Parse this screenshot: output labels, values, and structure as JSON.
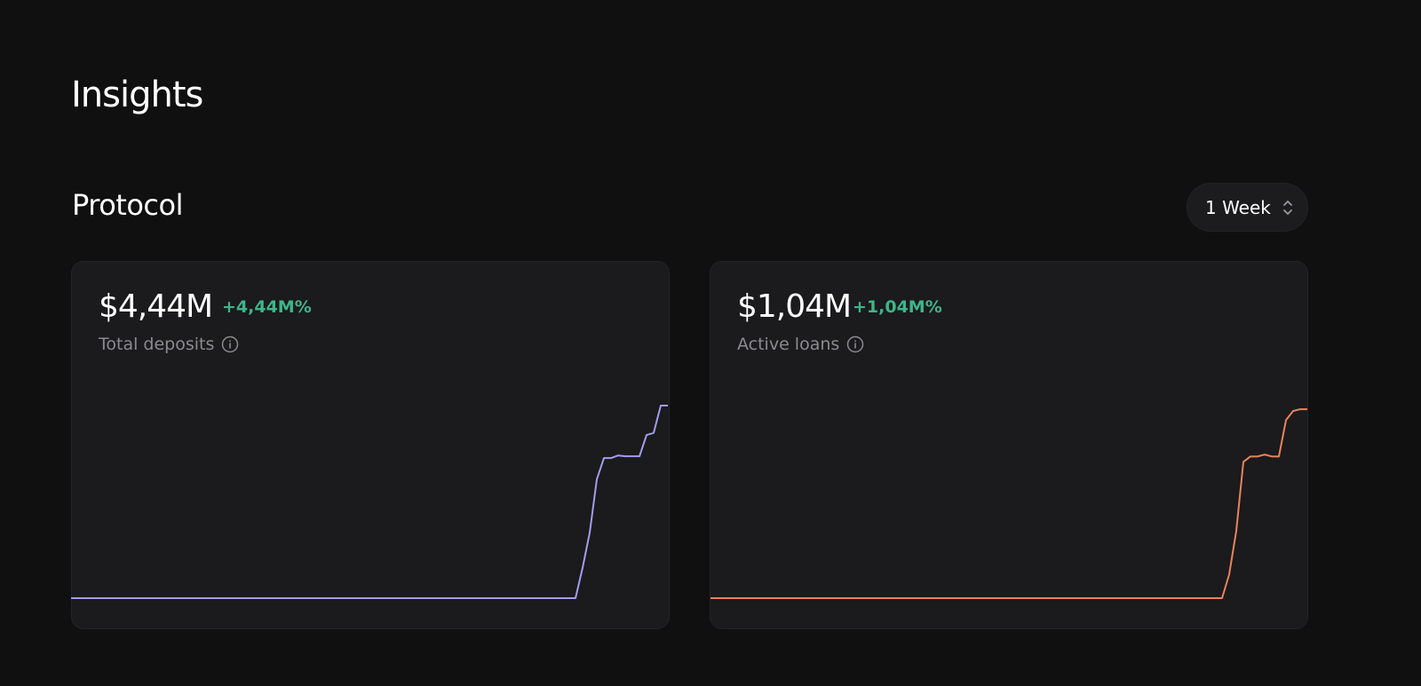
{
  "header": {
    "title": "Insights"
  },
  "section": {
    "title": "Protocol",
    "period": "1 Week"
  },
  "cards": [
    {
      "value": "$4,44M",
      "change": "+4,44M%",
      "label": "Total deposits"
    },
    {
      "value": "$1,04M",
      "change": "+1,04M%",
      "label": "Active loans"
    }
  ],
  "chart_data": [
    {
      "type": "line",
      "color": "#a49cf0",
      "ylim": [
        0,
        4.44
      ],
      "values": [
        0,
        0,
        0,
        0,
        0,
        0,
        0,
        0,
        0,
        0,
        0,
        0,
        0,
        0,
        0,
        0,
        0,
        0,
        0,
        0,
        0,
        0,
        0,
        0,
        0,
        0,
        0,
        0,
        0,
        0,
        0,
        0,
        0,
        0,
        0,
        0,
        0,
        0,
        0,
        0,
        0,
        0,
        0,
        0,
        0,
        0,
        0,
        0,
        0,
        0,
        0,
        0,
        0,
        0,
        0,
        0,
        0,
        0,
        0,
        0,
        0,
        0,
        0,
        0,
        0,
        0,
        0,
        0,
        0,
        0,
        0,
        0,
        0.7,
        1.51,
        2.74,
        3.23,
        3.23,
        3.29,
        3.27,
        3.27,
        3.27,
        3.76,
        3.81,
        4.44,
        4.44
      ]
    },
    {
      "type": "line",
      "color": "#e8845a",
      "ylim": [
        0,
        1.06
      ],
      "values": [
        0,
        0,
        0,
        0,
        0,
        0,
        0,
        0,
        0,
        0,
        0,
        0,
        0,
        0,
        0,
        0,
        0,
        0,
        0,
        0,
        0,
        0,
        0,
        0,
        0,
        0,
        0,
        0,
        0,
        0,
        0,
        0,
        0,
        0,
        0,
        0,
        0,
        0,
        0,
        0,
        0,
        0,
        0,
        0,
        0,
        0,
        0,
        0,
        0,
        0,
        0,
        0,
        0,
        0,
        0,
        0,
        0,
        0,
        0,
        0,
        0,
        0,
        0,
        0,
        0,
        0,
        0,
        0,
        0,
        0,
        0,
        0,
        0,
        0.13,
        0.37,
        0.75,
        0.78,
        0.78,
        0.79,
        0.78,
        0.78,
        0.98,
        1.03,
        1.04,
        1.04
      ]
    }
  ]
}
